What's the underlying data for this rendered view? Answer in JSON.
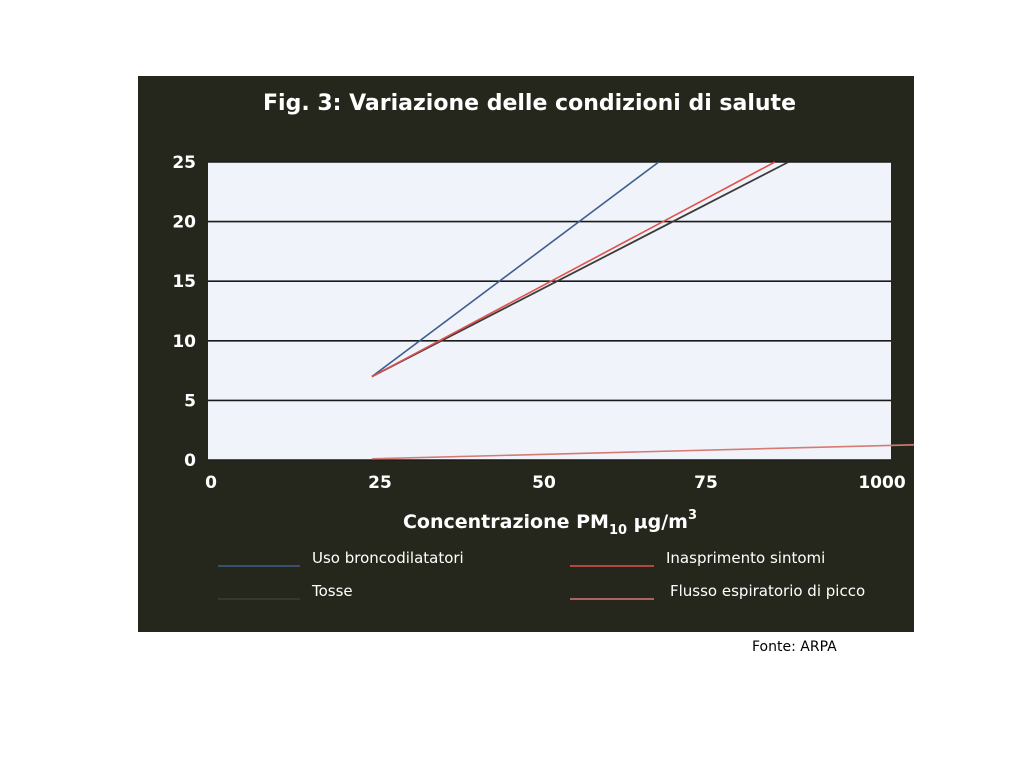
{
  "source_note": "Fonte: ARPA",
  "colors": {
    "panel_bg": "#26271c",
    "plot_bg": "#f1f3fa",
    "grid": "#1a1a1a",
    "blue": "#3d5f8c",
    "dark": "#3c3c3c",
    "red": "#e0524c",
    "pink": "#d77a74"
  },
  "chart_data": {
    "type": "line",
    "title": "Fig. 3: Variazione delle condizioni di salute",
    "xlabel": "Concentrazione PM10 μg/m3",
    "xlabel_parts": {
      "pre": "Concentrazione PM",
      "sub": "10",
      "mid": " μg/m",
      "sup": "3"
    },
    "ylabel": "",
    "x_categories": [
      "0",
      "25",
      "50",
      "75",
      "1000"
    ],
    "ylim": [
      0,
      25
    ],
    "y_ticks": [
      0,
      5,
      10,
      15,
      20,
      25
    ],
    "grid": true,
    "legend_position": "bottom",
    "series": [
      {
        "name": "Uso broncodilatatori",
        "color": "blue",
        "x": [
          24,
          66
        ],
        "y": [
          7,
          25
        ]
      },
      {
        "name": "Tosse",
        "color": "dark",
        "x": [
          24,
          85
        ],
        "y": [
          7,
          25
        ]
      },
      {
        "name": "Inasprimento sintomi",
        "color": "red",
        "x": [
          24,
          83
        ],
        "y": [
          7,
          25
        ]
      },
      {
        "name": "Flusso espiratorio di picco",
        "color": "pink",
        "x": [
          24,
          105
        ],
        "y": [
          0.1,
          1.3
        ]
      }
    ]
  }
}
